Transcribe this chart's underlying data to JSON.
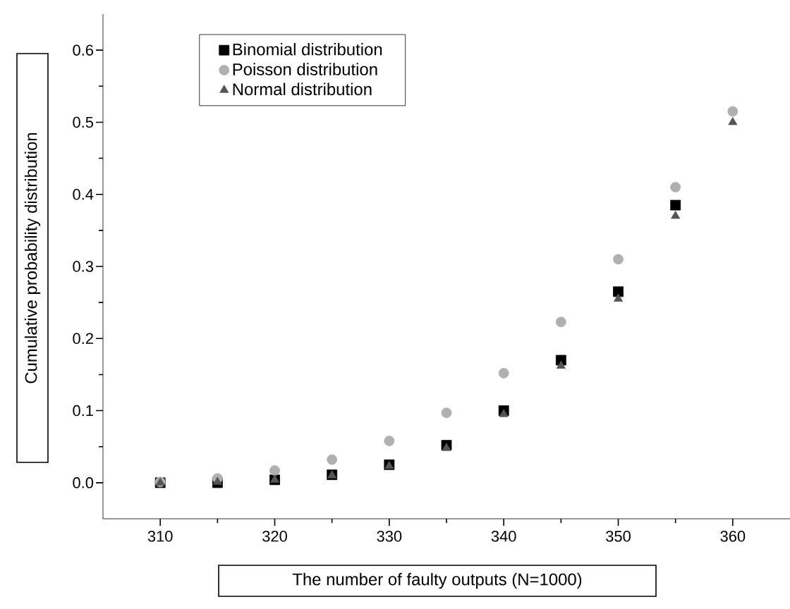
{
  "chart_data": {
    "type": "scatter",
    "xlabel": "The number of faulty outputs (N=1000)",
    "ylabel": "Cumulative probability distribution",
    "x": [
      310,
      315,
      320,
      325,
      330,
      335,
      340,
      345,
      350,
      355,
      360
    ],
    "series": [
      {
        "name": "Binomial distribution",
        "color": "#000000",
        "marker": "square",
        "values": [
          0,
          0,
          0.004,
          0.011,
          0.025,
          0.052,
          0.1,
          0.17,
          0.265,
          0.385,
          null
        ]
      },
      {
        "name": "Poisson distribution",
        "color": "#b0b0b0",
        "marker": "circle",
        "values": [
          0.001,
          0.006,
          0.017,
          0.032,
          0.058,
          0.097,
          0.152,
          0.223,
          0.31,
          0.41,
          0.515
        ]
      },
      {
        "name": "Normal distribution",
        "color": "#555555",
        "marker": "triangle",
        "values": [
          0,
          0.001,
          0.004,
          0.01,
          0.023,
          0.048,
          0.095,
          0.162,
          0.255,
          0.37,
          0.5
        ]
      }
    ],
    "xlim": [
      305,
      365
    ],
    "ylim": [
      -0.05,
      0.65
    ],
    "xticks": [
      310,
      320,
      330,
      340,
      350,
      360
    ],
    "yticks": [
      {
        "value": 0.0,
        "label": "0.0"
      },
      0.1,
      0.2,
      0.3,
      0.4,
      0.5,
      0.6
    ],
    "grid": false,
    "legend": "top left"
  }
}
